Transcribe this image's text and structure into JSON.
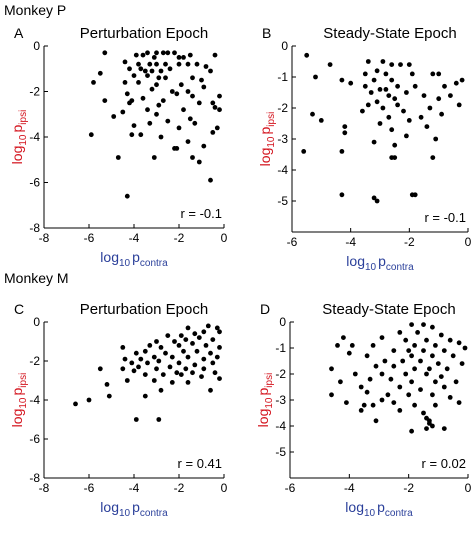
{
  "figure": {
    "groups": [
      {
        "label": "Monkey P",
        "x": 4,
        "y": 15
      },
      {
        "label": "Monkey M",
        "x": 4,
        "y": 283
      }
    ],
    "label_colors": {
      "x_axis": "#2a3f9a",
      "y_axis": "#d4141e",
      "points": "#000000"
    },
    "axis_label_parts": {
      "log": "log",
      "base": "10",
      "x_var": "p",
      "x_sub": "contra",
      "y_var": "p",
      "y_sub": "ipsi"
    }
  },
  "chart_data": [
    {
      "type": "scatter",
      "panel_letter": "A",
      "title": "Perturbation Epoch",
      "annotation": "r = -0.1",
      "xlabel": "log10 pcontra",
      "ylabel": "log10 pipsi",
      "xlim": [
        -8,
        0
      ],
      "ylim": [
        -8,
        0
      ],
      "xticks": [
        -8,
        -6,
        -4,
        -2,
        0
      ],
      "yticks": [
        -6,
        -4,
        -2,
        0
      ],
      "points": [
        [
          -3.4,
          -0.3
        ],
        [
          -3.0,
          -0.3
        ],
        [
          -2.7,
          -0.3
        ],
        [
          -2.5,
          -0.3
        ],
        [
          -2.2,
          -0.3
        ],
        [
          -3.9,
          -0.4
        ],
        [
          -3.6,
          -0.4
        ],
        [
          -3.1,
          -0.5
        ],
        [
          -2.0,
          -0.5
        ],
        [
          -1.8,
          -0.5
        ],
        [
          -1.5,
          -0.4
        ],
        [
          -0.4,
          -0.4
        ],
        [
          -5.3,
          -0.3
        ],
        [
          -4.4,
          -0.7
        ],
        [
          -3.8,
          -0.8
        ],
        [
          -3.3,
          -0.8
        ],
        [
          -3.0,
          -0.8
        ],
        [
          -2.6,
          -0.8
        ],
        [
          -2.0,
          -0.8
        ],
        [
          -1.6,
          -0.8
        ],
        [
          -1.2,
          -0.8
        ],
        [
          -0.8,
          -0.9
        ],
        [
          -4.2,
          -1.0
        ],
        [
          -3.7,
          -1.0
        ],
        [
          -3.5,
          -1.1
        ],
        [
          -3.2,
          -1.1
        ],
        [
          -2.8,
          -1.1
        ],
        [
          -2.4,
          -1.0
        ],
        [
          -0.6,
          -1.1
        ],
        [
          -5.5,
          -1.2
        ],
        [
          -4.0,
          -1.3
        ],
        [
          -3.4,
          -1.3
        ],
        [
          -2.9,
          -1.4
        ],
        [
          -2.6,
          -1.4
        ],
        [
          -1.4,
          -1.4
        ],
        [
          -1.0,
          -1.5
        ],
        [
          -5.8,
          -1.6
        ],
        [
          -4.4,
          -1.6
        ],
        [
          -3.8,
          -1.6
        ],
        [
          -3.0,
          -1.7
        ],
        [
          -1.9,
          -1.7
        ],
        [
          -0.9,
          -1.8
        ],
        [
          -3.2,
          -1.9
        ],
        [
          -2.3,
          -2.0
        ],
        [
          -1.6,
          -2.0
        ],
        [
          -4.3,
          -2.1
        ],
        [
          -2.1,
          -2.1
        ],
        [
          -1.4,
          -2.2
        ],
        [
          -0.2,
          -2.2
        ],
        [
          -5.3,
          -2.4
        ],
        [
          -4.1,
          -2.4
        ],
        [
          -3.6,
          -2.3
        ],
        [
          -2.7,
          -2.4
        ],
        [
          -4.2,
          -2.5
        ],
        [
          -2.9,
          -2.6
        ],
        [
          -1.1,
          -2.5
        ],
        [
          -0.5,
          -2.5
        ],
        [
          -1.8,
          -2.8
        ],
        [
          -0.4,
          -2.7
        ],
        [
          -0.2,
          -2.8
        ],
        [
          -3.4,
          -2.8
        ],
        [
          -4.5,
          -2.9
        ],
        [
          -3.0,
          -3.0
        ],
        [
          -4.9,
          -3.1
        ],
        [
          -1.5,
          -3.2
        ],
        [
          -2.5,
          -3.3
        ],
        [
          -1.3,
          -3.4
        ],
        [
          -4.0,
          -3.5
        ],
        [
          -3.3,
          -3.4
        ],
        [
          -2.0,
          -3.6
        ],
        [
          -0.3,
          -3.6
        ],
        [
          -0.5,
          -3.8
        ],
        [
          -5.9,
          -3.9
        ],
        [
          -3.7,
          -3.9
        ],
        [
          -4.1,
          -3.9
        ],
        [
          -2.8,
          -4.0
        ],
        [
          -1.6,
          -4.2
        ],
        [
          -0.9,
          -4.4
        ],
        [
          -2.2,
          -4.5
        ],
        [
          -2.1,
          -4.5
        ],
        [
          -4.7,
          -4.9
        ],
        [
          -3.1,
          -4.9
        ],
        [
          -1.4,
          -4.9
        ],
        [
          -1.1,
          -5.1
        ],
        [
          -0.6,
          -5.9
        ],
        [
          -4.3,
          -6.6
        ]
      ]
    },
    {
      "type": "scatter",
      "panel_letter": "B",
      "title": "Steady-State Epoch",
      "annotation": "r = -0.1",
      "xlabel": "log10 pcontra",
      "ylabel": "log10 pipsi",
      "xlim": [
        -6,
        0
      ],
      "ylim": [
        -6,
        0
      ],
      "xticks": [
        -6,
        -4,
        -2,
        0
      ],
      "yticks": [
        -5,
        -4,
        -3,
        -2,
        -1,
        0
      ],
      "points": [
        [
          -5.5,
          -0.3
        ],
        [
          -4.7,
          -0.6
        ],
        [
          -3.4,
          -0.5
        ],
        [
          -2.9,
          -0.5
        ],
        [
          -2.6,
          -0.6
        ],
        [
          -2.3,
          -0.6
        ],
        [
          -2.0,
          -0.6
        ],
        [
          -3.5,
          -0.9
        ],
        [
          -3.1,
          -0.8
        ],
        [
          -2.8,
          -0.9
        ],
        [
          -1.9,
          -0.9
        ],
        [
          -1.2,
          -0.9
        ],
        [
          -1.0,
          -0.9
        ],
        [
          -5.2,
          -1.0
        ],
        [
          -4.3,
          -1.1
        ],
        [
          -4.0,
          -1.2
        ],
        [
          -3.2,
          -1.1
        ],
        [
          -2.6,
          -1.1
        ],
        [
          -0.2,
          -1.1
        ],
        [
          -0.4,
          -1.2
        ],
        [
          -3.5,
          -1.3
        ],
        [
          -3.0,
          -1.4
        ],
        [
          -2.8,
          -1.4
        ],
        [
          -2.4,
          -1.3
        ],
        [
          -1.8,
          -1.3
        ],
        [
          -0.8,
          -1.3
        ],
        [
          -3.3,
          -1.5
        ],
        [
          -2.7,
          -1.6
        ],
        [
          -2.1,
          -1.5
        ],
        [
          -1.5,
          -1.6
        ],
        [
          -0.6,
          -1.6
        ],
        [
          -3.1,
          -1.8
        ],
        [
          -2.5,
          -1.7
        ],
        [
          -1.0,
          -1.7
        ],
        [
          -3.4,
          -1.9
        ],
        [
          -2.9,
          -2.0
        ],
        [
          -2.4,
          -1.9
        ],
        [
          -1.3,
          -2.0
        ],
        [
          -0.3,
          -1.9
        ],
        [
          -5.3,
          -2.2
        ],
        [
          -3.6,
          -2.1
        ],
        [
          -2.2,
          -2.1
        ],
        [
          -0.9,
          -2.2
        ],
        [
          -5.0,
          -2.4
        ],
        [
          -2.7,
          -2.3
        ],
        [
          -2.0,
          -2.4
        ],
        [
          -1.6,
          -2.3
        ],
        [
          -4.2,
          -2.6
        ],
        [
          -3.0,
          -2.5
        ],
        [
          -2.6,
          -2.7
        ],
        [
          -1.4,
          -2.6
        ],
        [
          -4.2,
          -2.8
        ],
        [
          -2.1,
          -2.9
        ],
        [
          -1.1,
          -3.0
        ],
        [
          -3.2,
          -3.1
        ],
        [
          -2.5,
          -3.2
        ],
        [
          -5.6,
          -3.4
        ],
        [
          -4.3,
          -3.4
        ],
        [
          -2.6,
          -3.6
        ],
        [
          -2.5,
          -3.6
        ],
        [
          -1.2,
          -3.6
        ],
        [
          -4.3,
          -4.8
        ],
        [
          -3.2,
          -4.9
        ],
        [
          -3.1,
          -5.0
        ],
        [
          -1.8,
          -4.8
        ],
        [
          -1.9,
          -4.8
        ]
      ]
    },
    {
      "type": "scatter",
      "panel_letter": "C",
      "title": "Perturbation Epoch",
      "annotation": "r = 0.41",
      "xlabel": "log10 pcontra",
      "ylabel": "log10 pipsi",
      "xlim": [
        -8,
        0
      ],
      "ylim": [
        -8,
        0
      ],
      "xticks": [
        -8,
        -6,
        -4,
        -2,
        0
      ],
      "yticks": [
        -6,
        -4,
        -2,
        0
      ],
      "points": [
        [
          -1.6,
          -0.3
        ],
        [
          -0.7,
          -0.2
        ],
        [
          -0.3,
          -0.3
        ],
        [
          -2.5,
          -0.7
        ],
        [
          -1.9,
          -0.7
        ],
        [
          -1.3,
          -0.6
        ],
        [
          -0.9,
          -0.5
        ],
        [
          -0.2,
          -0.5
        ],
        [
          -3.0,
          -1.0
        ],
        [
          -2.2,
          -1.0
        ],
        [
          -1.7,
          -0.9
        ],
        [
          -1.1,
          -0.8
        ],
        [
          -0.5,
          -0.9
        ],
        [
          -4.5,
          -1.3
        ],
        [
          -3.3,
          -1.2
        ],
        [
          -2.8,
          -1.3
        ],
        [
          -2.0,
          -1.2
        ],
        [
          -1.4,
          -1.1
        ],
        [
          -0.8,
          -1.2
        ],
        [
          -0.2,
          -1.3
        ],
        [
          -3.9,
          -1.6
        ],
        [
          -3.5,
          -1.5
        ],
        [
          -2.6,
          -1.6
        ],
        [
          -1.8,
          -1.5
        ],
        [
          -1.2,
          -1.5
        ],
        [
          -0.6,
          -1.6
        ],
        [
          -4.4,
          -1.9
        ],
        [
          -3.7,
          -1.9
        ],
        [
          -3.1,
          -1.8
        ],
        [
          -2.3,
          -1.8
        ],
        [
          -1.6,
          -1.8
        ],
        [
          -0.9,
          -1.9
        ],
        [
          -0.3,
          -1.8
        ],
        [
          -4.1,
          -2.1
        ],
        [
          -3.4,
          -2.1
        ],
        [
          -2.9,
          -2.0
        ],
        [
          -2.0,
          -2.1
        ],
        [
          -1.3,
          -2.2
        ],
        [
          -0.5,
          -2.1
        ],
        [
          -4.5,
          -2.4
        ],
        [
          -3.8,
          -2.3
        ],
        [
          -3.0,
          -2.4
        ],
        [
          -2.4,
          -2.3
        ],
        [
          -1.7,
          -2.4
        ],
        [
          -0.9,
          -2.4
        ],
        [
          -5.5,
          -2.4
        ],
        [
          -4.0,
          -2.5
        ],
        [
          -2.1,
          -2.6
        ],
        [
          -1.4,
          -2.6
        ],
        [
          -0.4,
          -2.6
        ],
        [
          -3.5,
          -2.7
        ],
        [
          -2.7,
          -2.7
        ],
        [
          -1.9,
          -2.7
        ],
        [
          -1.0,
          -2.8
        ],
        [
          -0.2,
          -2.9
        ],
        [
          -4.3,
          -3.0
        ],
        [
          -3.1,
          -3.0
        ],
        [
          -2.3,
          -3.1
        ],
        [
          -1.6,
          -3.1
        ],
        [
          -5.2,
          -3.2
        ],
        [
          -2.8,
          -3.5
        ],
        [
          -0.6,
          -3.5
        ],
        [
          -5.1,
          -3.8
        ],
        [
          -6.0,
          -4.0
        ],
        [
          -3.5,
          -3.8
        ],
        [
          -6.6,
          -4.2
        ],
        [
          -3.9,
          -5.0
        ],
        [
          -2.9,
          -5.0
        ]
      ]
    },
    {
      "type": "scatter",
      "panel_letter": "D",
      "title": "Steady-State Epoch",
      "annotation": "r = 0.02",
      "xlabel": "log10 pcontra",
      "ylabel": "log10 pipsi",
      "xlim": [
        -6,
        0
      ],
      "ylim": [
        -6,
        0
      ],
      "xticks": [
        -6,
        -4,
        -2,
        0
      ],
      "yticks": [
        -5,
        -4,
        -3,
        -2,
        -1,
        0
      ],
      "points": [
        [
          -1.9,
          -0.1
        ],
        [
          -1.5,
          -0.1
        ],
        [
          -1.2,
          -0.2
        ],
        [
          -2.3,
          -0.4
        ],
        [
          -1.7,
          -0.4
        ],
        [
          -0.9,
          -0.5
        ],
        [
          -4.2,
          -0.6
        ],
        [
          -2.9,
          -0.6
        ],
        [
          -2.1,
          -0.7
        ],
        [
          -1.4,
          -0.7
        ],
        [
          -0.6,
          -0.7
        ],
        [
          -4.4,
          -0.9
        ],
        [
          -3.9,
          -0.9
        ],
        [
          -3.2,
          -0.9
        ],
        [
          -1.8,
          -0.9
        ],
        [
          -1.1,
          -0.9
        ],
        [
          -0.3,
          -0.8
        ],
        [
          -0.1,
          -1.0
        ],
        [
          -2.5,
          -1.1
        ],
        [
          -2.0,
          -1.1
        ],
        [
          -1.5,
          -1.1
        ],
        [
          -0.8,
          -1.1
        ],
        [
          -4.0,
          -1.2
        ],
        [
          -3.4,
          -1.3
        ],
        [
          -1.9,
          -1.3
        ],
        [
          -1.2,
          -1.3
        ],
        [
          -0.5,
          -1.3
        ],
        [
          -2.8,
          -1.5
        ],
        [
          -2.2,
          -1.5
        ],
        [
          -1.6,
          -1.5
        ],
        [
          -1.0,
          -1.6
        ],
        [
          -0.2,
          -1.6
        ],
        [
          -4.6,
          -1.8
        ],
        [
          -3.1,
          -1.7
        ],
        [
          -2.5,
          -1.7
        ],
        [
          -1.8,
          -1.8
        ],
        [
          -1.3,
          -1.8
        ],
        [
          -0.7,
          -1.8
        ],
        [
          -3.8,
          -2.0
        ],
        [
          -2.9,
          -2.0
        ],
        [
          -2.1,
          -2.0
        ],
        [
          -1.4,
          -2.0
        ],
        [
          -0.9,
          -2.1
        ],
        [
          -4.3,
          -2.3
        ],
        [
          -3.3,
          -2.2
        ],
        [
          -2.6,
          -2.2
        ],
        [
          -1.9,
          -2.3
        ],
        [
          -1.1,
          -2.3
        ],
        [
          -0.4,
          -2.3
        ],
        [
          -3.6,
          -2.5
        ],
        [
          -2.3,
          -2.5
        ],
        [
          -1.6,
          -2.6
        ],
        [
          -0.8,
          -2.5
        ],
        [
          -4.6,
          -2.8
        ],
        [
          -3.4,
          -2.7
        ],
        [
          -2.7,
          -2.8
        ],
        [
          -2.0,
          -2.8
        ],
        [
          -1.2,
          -2.8
        ],
        [
          -0.6,
          -2.9
        ],
        [
          -4.1,
          -3.1
        ],
        [
          -3.5,
          -3.2
        ],
        [
          -3.2,
          -3.2
        ],
        [
          -2.9,
          -3.0
        ],
        [
          -2.5,
          -3.1
        ],
        [
          -1.8,
          -3.2
        ],
        [
          -1.1,
          -3.2
        ],
        [
          -0.3,
          -3.1
        ],
        [
          -3.6,
          -3.4
        ],
        [
          -2.3,
          -3.4
        ],
        [
          -1.5,
          -3.5
        ],
        [
          -1.4,
          -3.7
        ],
        [
          -1.3,
          -3.8
        ],
        [
          -1.3,
          -3.9
        ],
        [
          -1.2,
          -4.0
        ],
        [
          -1.4,
          -4.1
        ],
        [
          -0.8,
          -4.1
        ],
        [
          -1.9,
          -4.2
        ],
        [
          -3.1,
          -3.8
        ]
      ]
    }
  ]
}
